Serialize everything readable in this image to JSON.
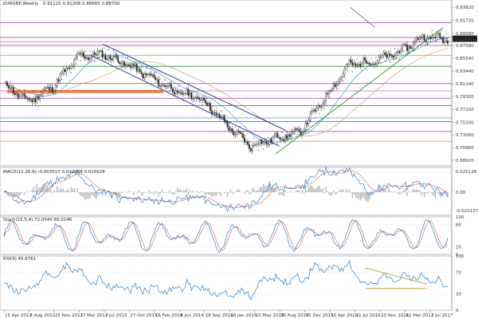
{
  "header": {
    "symbol": "EURGBP,Weekly",
    "ohlc": "0.91125 0.91208 0.88665 0.88700"
  },
  "price_scale": {
    "ticks": [
      0.9382,
      0.9172,
      0.8958,
      0.8758,
      0.8554,
      0.8344,
      0.8134,
      0.793,
      0.772,
      0.751,
      0.7306,
      0.7096,
      0.6892
    ],
    "current_value": 0.887,
    "current_label": "0.88700",
    "range": [
      0.68,
      0.95
    ]
  },
  "indicators": [
    {
      "name": "MACD",
      "caption": "MACD(12,26,9) -0.003517 0.012288 0.015024",
      "ticks": [
        "0.025126",
        "0.00",
        "-0.022137"
      ],
      "range": [
        -0.028,
        0.03
      ]
    },
    {
      "name": "Stoch",
      "caption": "Stoch(15,5,4) 72.0540 89.0146",
      "ticks": [
        "100",
        "80",
        "20",
        "0"
      ],
      "range": [
        0,
        100
      ]
    },
    {
      "name": "RSI",
      "caption": "RSI(9) 45.6761",
      "ticks": [
        "100",
        "70",
        "30",
        "0"
      ],
      "range": [
        0,
        100
      ]
    }
  ],
  "x_axis": {
    "labels": [
      "15 Apr 2012",
      "5 Aug 2012",
      "25 Nov 2012",
      "17 Mar 2013",
      "7 Jul 2013",
      "27 Oct 2013",
      "16 Feb 2014",
      "8 Jun 2014",
      "28 Sep 2014",
      "18 Jan 2015",
      "10 May 2015",
      "30 Aug 2015",
      "20 Dec 2015",
      "10 Apr 2016",
      "31 Jul 2016",
      "20 Nov 2016",
      "12 Mar 2017",
      "2 Jul 2017"
    ]
  },
  "colors": {
    "bull": "#f4f4f4",
    "bear": "#222222",
    "ma_fast": "#3aa0c8",
    "ma_slow": "#c8a070",
    "sar": "#5b4bc8",
    "trend_up": "#2e8b2e",
    "channel": "#1f2d80",
    "zone": "#e8692a",
    "level_purple": "#a030a0",
    "level_pink": "#e060c0",
    "osc_blue": "#2a7fc8",
    "osc_red": "#c82a2a",
    "rsi_trend": "#b8a020",
    "current_box": "#222222"
  },
  "chart_data": {
    "type": "candlestick",
    "title": "EURGBP,Weekly",
    "ylim": [
      0.68,
      0.95
    ],
    "anchors": [
      [
        "15 Apr 2012",
        0.812
      ],
      [
        "5 Aug 2012",
        0.785
      ],
      [
        "25 Nov 2012",
        0.81
      ],
      [
        "17 Mar 2013",
        0.858
      ],
      [
        "7 Jul 2013",
        0.862
      ],
      [
        "27 Oct 2013",
        0.845
      ],
      [
        "16 Feb 2014",
        0.823
      ],
      [
        "8 Jun 2014",
        0.8
      ],
      [
        "28 Sep 2014",
        0.79
      ],
      [
        "18 Jan 2015",
        0.748
      ],
      [
        "10 May 2015",
        0.712
      ],
      [
        "30 Aug 2015",
        0.725
      ],
      [
        "20 Dec 2015",
        0.735
      ],
      [
        "10 Apr 2016",
        0.79
      ],
      [
        "31 Jul 2016",
        0.845
      ],
      [
        "20 Nov 2016",
        0.85
      ],
      [
        "12 Mar 2017",
        0.865
      ],
      [
        "2 Jul 2017",
        0.89
      ],
      [
        "10 Sep 2017",
        0.887
      ]
    ],
    "horizontal_levels": [
      {
        "value": 0.913,
        "color": "#a030a0"
      },
      {
        "value": 0.889,
        "color": "#a030a0"
      },
      {
        "value": 0.882,
        "color": "#e060c0"
      },
      {
        "value": 0.876,
        "color": "#a030a0"
      },
      {
        "value": 0.86,
        "color": "#c8a070"
      },
      {
        "value": 0.842,
        "color": "#2e8b2e"
      },
      {
        "value": 0.814,
        "color": "#a030a0"
      },
      {
        "value": 0.802,
        "color": "#e060c0"
      },
      {
        "value": 0.79,
        "color": "#a030a0"
      },
      {
        "value": 0.778,
        "color": "#555555"
      },
      {
        "value": 0.758,
        "color": "#3aa0c8"
      },
      {
        "value": 0.752,
        "color": "#a030a0"
      },
      {
        "value": 0.736,
        "color": "#a030a0"
      },
      {
        "value": 0.72,
        "color": "#c8a070"
      }
    ]
  }
}
